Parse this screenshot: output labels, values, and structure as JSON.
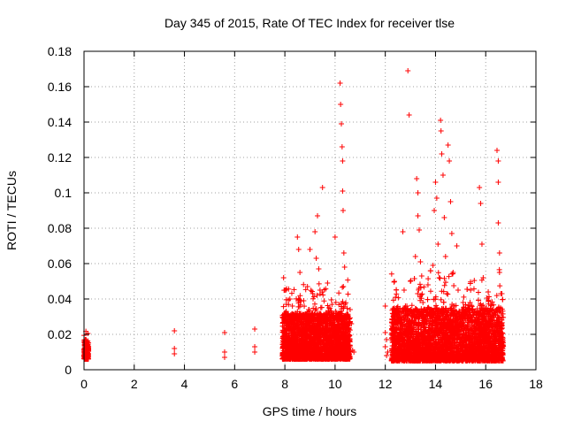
{
  "chart_data": {
    "type": "scatter",
    "title": "Day 345 of 2015, Rate Of TEC Index for receiver tlse",
    "xlabel": "GPS time / hours",
    "ylabel": "ROTI / TECUs",
    "xlim": [
      0,
      18
    ],
    "ylim": [
      0,
      0.18
    ],
    "x_ticks": [
      0,
      2,
      4,
      6,
      8,
      10,
      12,
      14,
      16,
      18
    ],
    "y_ticks": [
      0,
      0.02,
      0.04,
      0.06,
      0.08,
      0.1,
      0.12,
      0.14,
      0.16,
      0.18
    ],
    "grid": true,
    "marker": "+",
    "marker_color": "#ff0000",
    "series": [
      {
        "name": "ROTI",
        "points": [
          [
            0.05,
            0.009
          ],
          [
            0.08,
            0.012
          ],
          [
            0.1,
            0.015
          ],
          [
            0.12,
            0.011
          ],
          [
            0.15,
            0.014
          ],
          [
            0.05,
            0.017
          ],
          [
            0.1,
            0.007
          ],
          [
            0.13,
            0.013
          ],
          [
            0.07,
            0.016
          ],
          [
            3.6,
            0.022
          ],
          [
            3.6,
            0.012
          ],
          [
            3.6,
            0.009
          ],
          [
            5.6,
            0.021
          ],
          [
            5.6,
            0.01
          ],
          [
            5.6,
            0.007
          ],
          [
            6.8,
            0.023
          ],
          [
            6.8,
            0.013
          ],
          [
            6.8,
            0.01
          ],
          [
            7.95,
            0.052
          ],
          [
            8.0,
            0.045
          ],
          [
            8.05,
            0.033
          ],
          [
            8.1,
            0.028
          ],
          [
            8.0,
            0.02
          ],
          [
            7.95,
            0.016
          ],
          [
            8.1,
            0.012
          ],
          [
            8.05,
            0.009
          ],
          [
            8.2,
            0.04
          ],
          [
            8.3,
            0.036
          ],
          [
            8.25,
            0.018
          ],
          [
            8.4,
            0.025
          ],
          [
            8.35,
            0.014
          ],
          [
            8.45,
            0.031
          ],
          [
            8.5,
            0.075
          ],
          [
            8.55,
            0.068
          ],
          [
            8.6,
            0.055
          ],
          [
            8.65,
            0.022
          ],
          [
            8.7,
            0.017
          ],
          [
            8.75,
            0.039
          ],
          [
            8.8,
            0.029
          ],
          [
            8.9,
            0.047
          ],
          [
            8.95,
            0.034
          ],
          [
            9.0,
            0.068
          ],
          [
            9.05,
            0.024
          ],
          [
            9.1,
            0.015
          ],
          [
            9.2,
            0.078
          ],
          [
            9.25,
            0.063
          ],
          [
            9.3,
            0.087
          ],
          [
            9.35,
            0.057
          ],
          [
            9.4,
            0.045
          ],
          [
            9.45,
            0.026
          ],
          [
            9.5,
            0.103
          ],
          [
            9.55,
            0.02
          ],
          [
            9.6,
            0.012
          ],
          [
            9.7,
            0.049
          ],
          [
            9.75,
            0.035
          ],
          [
            9.8,
            0.028
          ],
          [
            9.85,
            0.018
          ],
          [
            9.9,
            0.016
          ],
          [
            9.95,
            0.022
          ],
          [
            10.0,
            0.075
          ],
          [
            10.05,
            0.032
          ],
          [
            10.1,
            0.025
          ],
          [
            10.15,
            0.015
          ],
          [
            10.2,
            0.162
          ],
          [
            10.22,
            0.15
          ],
          [
            10.25,
            0.139
          ],
          [
            10.28,
            0.126
          ],
          [
            10.3,
            0.118
          ],
          [
            10.3,
            0.101
          ],
          [
            10.32,
            0.09
          ],
          [
            10.35,
            0.066
          ],
          [
            10.38,
            0.058
          ],
          [
            10.33,
            0.047
          ],
          [
            10.4,
            0.037
          ],
          [
            10.42,
            0.029
          ],
          [
            10.45,
            0.02
          ],
          [
            10.5,
            0.014
          ],
          [
            10.6,
            0.034
          ],
          [
            10.65,
            0.026
          ],
          [
            10.7,
            0.011
          ],
          [
            10.75,
            0.01
          ],
          [
            12.0,
            0.036
          ],
          [
            12.0,
            0.021
          ],
          [
            12.05,
            0.017
          ],
          [
            12.0,
            0.013
          ],
          [
            12.1,
            0.01
          ],
          [
            12.05,
            0.008
          ],
          [
            12.3,
            0.019
          ],
          [
            12.35,
            0.016
          ],
          [
            12.4,
            0.012
          ],
          [
            12.5,
            0.031
          ],
          [
            12.55,
            0.02
          ],
          [
            12.6,
            0.026
          ],
          [
            12.65,
            0.014
          ],
          [
            12.7,
            0.078
          ],
          [
            12.75,
            0.045
          ],
          [
            12.8,
            0.036
          ],
          [
            12.85,
            0.023
          ],
          [
            12.9,
            0.169
          ],
          [
            12.95,
            0.144
          ],
          [
            13.0,
            0.05
          ],
          [
            13.05,
            0.033
          ],
          [
            13.1,
            0.018
          ],
          [
            13.15,
            0.012
          ],
          [
            13.2,
            0.064
          ],
          [
            13.25,
            0.108
          ],
          [
            13.3,
            0.1
          ],
          [
            13.3,
            0.087
          ],
          [
            13.35,
            0.079
          ],
          [
            13.4,
            0.061
          ],
          [
            13.45,
            0.053
          ],
          [
            13.5,
            0.038
          ],
          [
            13.55,
            0.027
          ],
          [
            13.6,
            0.019
          ],
          [
            13.7,
            0.048
          ],
          [
            13.75,
            0.015
          ],
          [
            13.8,
            0.034
          ],
          [
            13.85,
            0.026
          ],
          [
            13.9,
            0.059
          ],
          [
            13.95,
            0.09
          ],
          [
            14.0,
            0.106
          ],
          [
            14.05,
            0.097
          ],
          [
            14.1,
            0.071
          ],
          [
            14.15,
            0.052
          ],
          [
            14.2,
            0.141
          ],
          [
            14.22,
            0.135
          ],
          [
            14.25,
            0.122
          ],
          [
            14.3,
            0.11
          ],
          [
            14.35,
            0.086
          ],
          [
            14.4,
            0.064
          ],
          [
            14.45,
            0.043
          ],
          [
            14.5,
            0.127
          ],
          [
            14.55,
            0.118
          ],
          [
            14.6,
            0.095
          ],
          [
            14.65,
            0.077
          ],
          [
            14.7,
            0.055
          ],
          [
            14.75,
            0.036
          ],
          [
            14.8,
            0.028
          ],
          [
            14.85,
            0.07
          ],
          [
            14.9,
            0.045
          ],
          [
            15.0,
            0.024
          ],
          [
            15.1,
            0.038
          ],
          [
            15.2,
            0.017
          ],
          [
            15.3,
            0.029
          ],
          [
            15.4,
            0.045
          ],
          [
            15.5,
            0.021
          ],
          [
            15.6,
            0.033
          ],
          [
            15.7,
            0.015
          ],
          [
            15.75,
            0.103
          ],
          [
            15.8,
            0.094
          ],
          [
            15.85,
            0.071
          ],
          [
            15.9,
            0.052
          ],
          [
            16.0,
            0.028
          ],
          [
            16.05,
            0.018
          ],
          [
            16.1,
            0.044
          ],
          [
            16.2,
            0.037
          ],
          [
            16.3,
            0.026
          ],
          [
            16.4,
            0.02
          ],
          [
            16.45,
            0.124
          ],
          [
            16.5,
            0.118
          ],
          [
            16.5,
            0.106
          ],
          [
            16.5,
            0.083
          ],
          [
            16.55,
            0.066
          ],
          [
            16.55,
            0.055
          ],
          [
            16.6,
            0.043
          ],
          [
            16.65,
            0.015
          ],
          [
            16.6,
            0.01
          ]
        ]
      }
    ]
  }
}
